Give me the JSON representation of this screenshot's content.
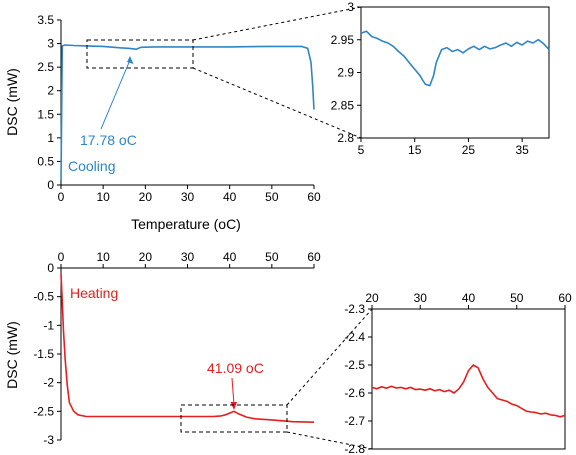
{
  "colors": {
    "cooling": "#2f86c6",
    "heating": "#e61e1e",
    "axis": "#000000"
  },
  "chart_data": [
    {
      "id": "cooling-main",
      "type": "line",
      "xlabel": "Temperature (oC)",
      "ylabel": "DSC (mW)",
      "xlim": [
        0,
        60
      ],
      "ylim": [
        0,
        3.5
      ],
      "xticks": [
        "0",
        "10",
        "20",
        "30",
        "40",
        "50",
        "60"
      ],
      "yticks": [
        "0",
        "0.5",
        "1",
        "1.5",
        "2",
        "2.5",
        "3",
        "3.5"
      ],
      "legend_text": "Cooling",
      "annotation": "17.78 oC",
      "series": [
        {
          "x": [
            0,
            0.3,
            1,
            3,
            6,
            10,
            14,
            16,
            17.8,
            19,
            22,
            30,
            40,
            50,
            57,
            58.5,
            59.3,
            59.7,
            60
          ],
          "y": [
            0.1,
            2.95,
            2.97,
            2.96,
            2.95,
            2.94,
            2.91,
            2.9,
            2.88,
            2.92,
            2.93,
            2.93,
            2.93,
            2.94,
            2.94,
            2.9,
            2.6,
            2.1,
            1.6
          ]
        }
      ]
    },
    {
      "id": "cooling-zoom",
      "type": "line",
      "xlim": [
        5,
        40
      ],
      "ylim": [
        2.8,
        3
      ],
      "xticks": [
        "5",
        "15",
        "25",
        "35"
      ],
      "yticks": [
        "2.8",
        "2.85",
        "2.9",
        "2.95",
        "3"
      ],
      "series": [
        {
          "x": [
            5,
            6,
            7,
            8,
            9,
            10,
            11,
            12,
            13,
            14,
            15,
            16,
            16.5,
            17,
            17.8,
            18.5,
            19,
            20,
            21,
            22,
            23,
            24,
            25,
            26,
            27,
            28,
            29,
            30,
            31,
            32,
            33,
            34,
            35,
            36,
            37,
            38,
            39,
            40
          ],
          "y": [
            2.96,
            2.963,
            2.955,
            2.952,
            2.948,
            2.945,
            2.94,
            2.932,
            2.925,
            2.915,
            2.905,
            2.895,
            2.888,
            2.882,
            2.88,
            2.895,
            2.915,
            2.935,
            2.938,
            2.932,
            2.935,
            2.93,
            2.936,
            2.94,
            2.935,
            2.94,
            2.936,
            2.938,
            2.942,
            2.945,
            2.94,
            2.946,
            2.942,
            2.948,
            2.945,
            2.95,
            2.944,
            2.935
          ]
        }
      ]
    },
    {
      "id": "heating-main",
      "type": "line",
      "ylabel": "DSC (mW)",
      "xlim": [
        0,
        60
      ],
      "ylim": [
        -3,
        0
      ],
      "xticks": [
        "0",
        "10",
        "20",
        "30",
        "40",
        "50",
        "60"
      ],
      "yticks": [
        "-3",
        "-2.5",
        "-2",
        "-1.5",
        "-1",
        "-0.5",
        "0"
      ],
      "legend_text": "Heating",
      "annotation": "41.09 oC",
      "series": [
        {
          "x": [
            0,
            0.3,
            0.6,
            1,
            1.5,
            2,
            3,
            4,
            6,
            10,
            20,
            30,
            36,
            38,
            39,
            40,
            41,
            42,
            44,
            46,
            50,
            55,
            60
          ],
          "y": [
            -0.1,
            -0.6,
            -1.1,
            -1.6,
            -2.05,
            -2.35,
            -2.5,
            -2.56,
            -2.59,
            -2.59,
            -2.59,
            -2.59,
            -2.59,
            -2.58,
            -2.56,
            -2.53,
            -2.5,
            -2.54,
            -2.6,
            -2.63,
            -2.65,
            -2.68,
            -2.69
          ]
        }
      ]
    },
    {
      "id": "heating-zoom",
      "type": "line",
      "xlim": [
        20,
        60
      ],
      "ylim": [
        -2.8,
        -2.3
      ],
      "xticks": [
        "20",
        "30",
        "40",
        "50",
        "60"
      ],
      "yticks": [
        "-2.8",
        "-2.7",
        "-2.6",
        "-2.5",
        "-2.4",
        "-2.3"
      ],
      "series": [
        {
          "x": [
            20,
            21,
            22,
            23,
            24,
            25,
            26,
            27,
            28,
            29,
            30,
            31,
            32,
            33,
            34,
            35,
            36,
            37,
            38,
            39,
            40,
            41,
            42,
            43,
            44,
            45,
            46,
            47,
            48,
            49,
            50,
            51,
            52,
            53,
            54,
            55,
            56,
            57,
            58,
            59,
            60
          ],
          "y": [
            -2.58,
            -2.585,
            -2.578,
            -2.583,
            -2.576,
            -2.582,
            -2.58,
            -2.585,
            -2.58,
            -2.588,
            -2.586,
            -2.59,
            -2.585,
            -2.592,
            -2.588,
            -2.595,
            -2.59,
            -2.6,
            -2.585,
            -2.56,
            -2.52,
            -2.5,
            -2.51,
            -2.55,
            -2.58,
            -2.6,
            -2.62,
            -2.625,
            -2.63,
            -2.64,
            -2.645,
            -2.655,
            -2.665,
            -2.668,
            -2.67,
            -2.675,
            -2.672,
            -2.678,
            -2.68,
            -2.685,
            -2.68
          ]
        }
      ]
    }
  ]
}
